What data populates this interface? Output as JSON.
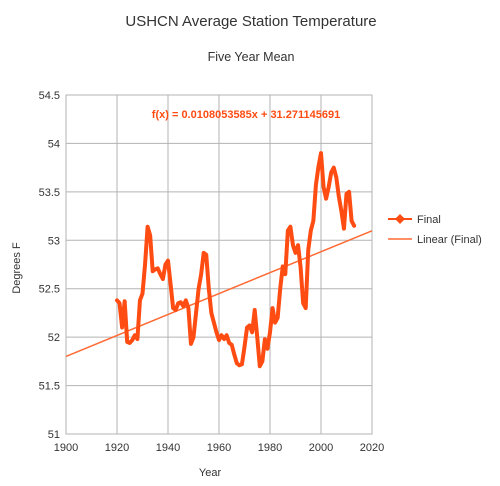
{
  "chart_data": {
    "type": "line",
    "title": "USHCN Average Station Temperature",
    "subtitle": "Five Year Mean",
    "xlabel": "Year",
    "ylabel": "Degrees F",
    "xlim": [
      1900,
      2020
    ],
    "ylim": [
      51,
      54.5
    ],
    "x_ticks": [
      "1900",
      "1920",
      "1940",
      "1960",
      "1980",
      "2000",
      "2020"
    ],
    "y_ticks": [
      "51",
      "51.5",
      "52",
      "52.5",
      "53",
      "53.5",
      "54",
      "54.5"
    ],
    "grid": true,
    "legend_position": "right",
    "accent_color": "#ff4c12",
    "trend_color": "#ff6a33",
    "trendline_equation": "f(x) = 0.0108053585x + 31.271145691",
    "trendline": {
      "name": "Linear (Final)",
      "slope": 0.0108053585,
      "intercept": 31.271145691
    },
    "series": [
      {
        "name": "Final",
        "x": [
          1920,
          1921,
          1922,
          1923,
          1924,
          1925,
          1926,
          1927,
          1928,
          1929,
          1930,
          1931,
          1932,
          1933,
          1934,
          1935,
          1936,
          1937,
          1938,
          1939,
          1940,
          1941,
          1942,
          1943,
          1944,
          1945,
          1946,
          1947,
          1948,
          1949,
          1950,
          1951,
          1952,
          1953,
          1954,
          1955,
          1956,
          1957,
          1958,
          1959,
          1960,
          1961,
          1962,
          1963,
          1964,
          1965,
          1966,
          1967,
          1968,
          1969,
          1970,
          1971,
          1972,
          1973,
          1974,
          1975,
          1976,
          1977,
          1978,
          1979,
          1980,
          1981,
          1982,
          1983,
          1984,
          1985,
          1986,
          1987,
          1988,
          1989,
          1990,
          1991,
          1992,
          1993,
          1994,
          1995,
          1996,
          1997,
          1998,
          1999,
          2000,
          2001,
          2002,
          2003,
          2004,
          2005,
          2006,
          2007,
          2008,
          2009,
          2010,
          2011,
          2012,
          2013
        ],
        "values": [
          52.38,
          52.35,
          52.1,
          52.37,
          51.95,
          51.94,
          51.97,
          52.02,
          51.98,
          52.38,
          52.45,
          52.75,
          53.14,
          53.05,
          52.68,
          52.7,
          52.71,
          52.65,
          52.6,
          52.75,
          52.79,
          52.55,
          52.3,
          52.28,
          52.35,
          52.36,
          52.32,
          52.38,
          52.3,
          51.93,
          52.0,
          52.25,
          52.5,
          52.65,
          52.87,
          52.85,
          52.5,
          52.25,
          52.15,
          52.05,
          51.97,
          52.02,
          51.98,
          52.02,
          51.94,
          51.92,
          51.82,
          51.73,
          51.71,
          51.72,
          51.9,
          52.1,
          52.12,
          52.05,
          52.28,
          52.0,
          51.7,
          51.75,
          51.98,
          51.88,
          52.05,
          52.3,
          52.15,
          52.2,
          52.5,
          52.73,
          52.65,
          53.1,
          53.14,
          52.95,
          52.87,
          52.95,
          52.72,
          52.35,
          52.3,
          52.9,
          53.1,
          53.2,
          53.57,
          53.76,
          53.9,
          53.55,
          53.43,
          53.55,
          53.7,
          53.75,
          53.65,
          53.45,
          53.3,
          53.12,
          53.48,
          53.5,
          53.2,
          53.15
        ]
      }
    ]
  }
}
